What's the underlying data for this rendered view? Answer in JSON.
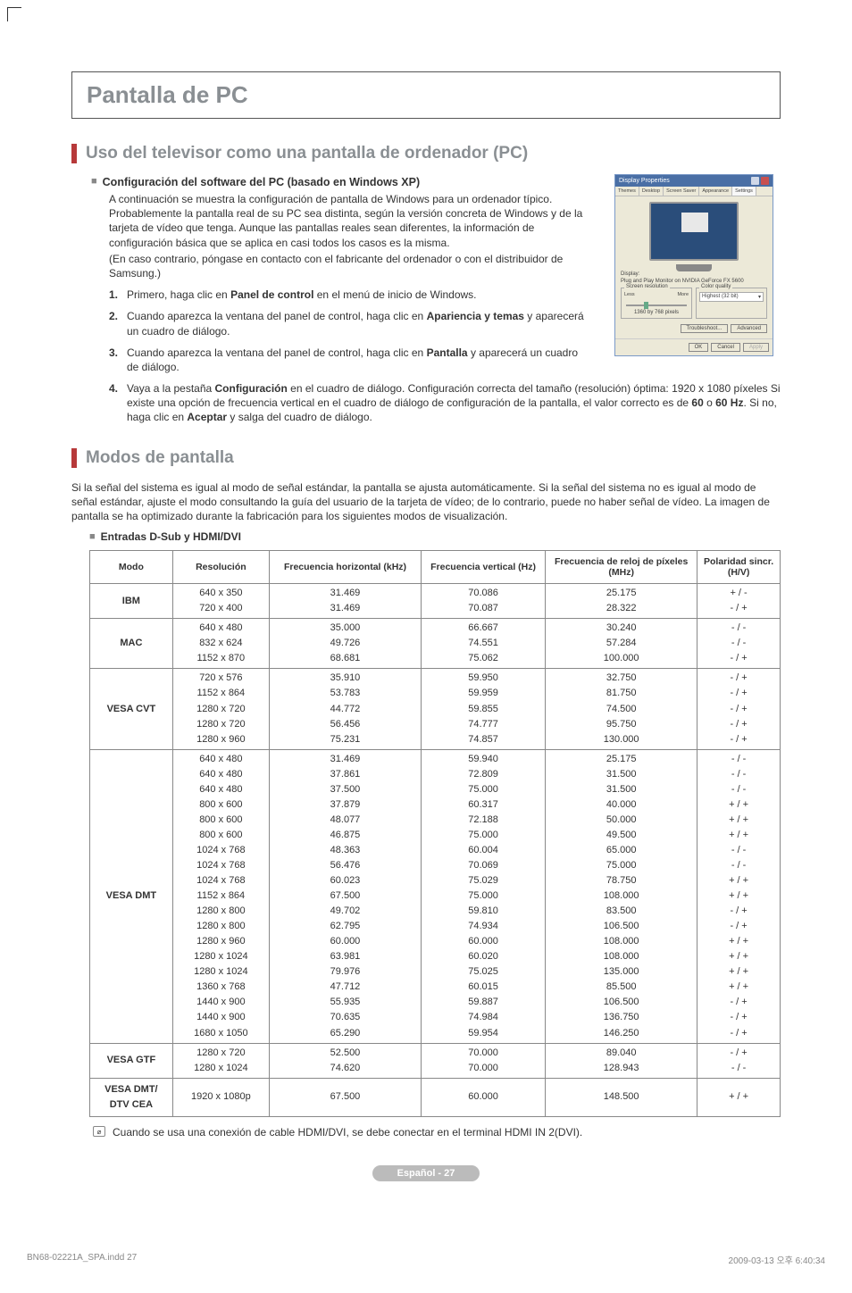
{
  "title": "Pantalla de PC",
  "section1": {
    "title": "Uso del televisor como una pantalla de ordenador (PC)",
    "subhead": "Configuración del software del PC (basado en Windows XP)",
    "intro1": "A continuación se muestra la configuración de pantalla de Windows para un ordenador típico. Probablemente la pantalla real de su PC sea distinta, según la versión concreta de Windows y de la tarjeta de vídeo que tenga. Aunque las pantallas reales sean diferentes, la información de configuración básica que se aplica en casi todos los casos es la misma.",
    "intro2": "(En caso contrario, póngase en contacto con el fabricante del ordenador o con el distribuidor de Samsung.)",
    "steps": [
      {
        "n": "1.",
        "pre": "Primero, haga clic en ",
        "b": "Panel de control",
        "post": " en el menú de inicio de Windows."
      },
      {
        "n": "2.",
        "pre": "Cuando aparezca la ventana del panel de control, haga clic en ",
        "b": "Apariencia y temas",
        "post": "  y aparecerá un cuadro de diálogo."
      },
      {
        "n": "3.",
        "pre": "Cuando aparezca la ventana del panel de control, haga clic en ",
        "b": "Pantalla",
        "post": " y aparecerá un cuadro de diálogo."
      },
      {
        "n": "4.",
        "pre": "Vaya a la pestaña ",
        "b": "Configuración",
        "post": " en el cuadro de diálogo. Configuración correcta del tamaño (resolución) óptima: 1920 x 1080 píxeles Si existe una opción de frecuencia vertical en el cuadro de diálogo de configuración de la pantalla, el valor correcto es de ",
        "b2": "60",
        "mid": " o ",
        "b3": "60 Hz",
        "post2": ". Si no, haga clic en ",
        "b4": "Aceptar",
        "post3": " y salga del cuadro de diálogo."
      }
    ]
  },
  "display_dialog": {
    "title": "Display Properties",
    "tabs": [
      "Themes",
      "Desktop",
      "Screen Saver",
      "Appearance",
      "Settings"
    ],
    "display_label": "Display:",
    "display_name": "Plug and Play Monitor on NVIDIA GeForce FX 5600",
    "screen_res": "Screen resolution",
    "less": "Less",
    "more": "More",
    "res_val": "1360 by 768 pixels",
    "colq": "Color quality",
    "colq_val": "Highest (32 bit)",
    "trouble": "Troubleshoot...",
    "adv": "Advanced",
    "ok": "OK",
    "cancel": "Cancel",
    "apply": "Apply"
  },
  "section2": {
    "title": "Modos de pantalla",
    "intro": "Si la señal del sistema es igual al modo de señal estándar, la pantalla se ajusta automáticamente. Si la señal del sistema no es igual al modo de señal estándar, ajuste el modo consultando la guía del usuario de la tarjeta de vídeo; de lo contrario, puede no haber señal de vídeo. La imagen de pantalla se ha optimizado durante la fabricación para los siguientes modos de visualización.",
    "entradas": "Entradas D-Sub y HDMI/DVI"
  },
  "table": {
    "headers": [
      "Modo",
      "Resolución",
      "Frecuencia horizontal (kHz)",
      "Frecuencia vertical (Hz)",
      "Frecuencia de reloj de píxeles (MHz)",
      "Polaridad sincr. (H/V)"
    ],
    "col_pct": [
      12,
      14,
      22,
      18,
      22,
      12
    ],
    "rows": [
      {
        "mode": "IBM",
        "res": "640 x 350\n720 x 400",
        "fh": "31.469\n31.469",
        "fv": "70.086\n70.087",
        "clk": "25.175\n28.322",
        "pol": "+ / -\n- / +"
      },
      {
        "mode": "MAC",
        "res": "640 x 480\n832 x 624\n1152 x 870",
        "fh": "35.000\n49.726\n68.681",
        "fv": "66.667\n74.551\n75.062",
        "clk": "30.240\n57.284\n100.000",
        "pol": "- / -\n- / -\n- / +"
      },
      {
        "mode": "VESA CVT",
        "res": "720 x 576\n1152 x 864\n1280 x 720\n1280 x 720\n1280 x 960",
        "fh": "35.910\n53.783\n44.772\n56.456\n75.231",
        "fv": "59.950\n59.959\n59.855\n74.777\n74.857",
        "clk": "32.750\n81.750\n74.500\n95.750\n130.000",
        "pol": "- / +\n- / +\n- / +\n- / +\n- / +"
      },
      {
        "mode": "VESA DMT",
        "res": "640 x 480\n640 x 480\n640 x 480\n800 x 600\n800 x 600\n800 x 600\n1024 x 768\n1024 x 768\n1024 x 768\n1152 x 864\n1280 x 800\n1280 x 800\n1280 x 960\n1280 x 1024\n1280 x 1024\n1360 x 768\n1440 x 900\n1440 x 900\n1680 x 1050",
        "fh": "31.469\n37.861\n37.500\n37.879\n48.077\n46.875\n48.363\n56.476\n60.023\n67.500\n49.702\n62.795\n60.000\n63.981\n79.976\n47.712\n55.935\n70.635\n65.290",
        "fv": "59.940\n72.809\n75.000\n60.317\n72.188\n75.000\n60.004\n70.069\n75.029\n75.000\n59.810\n74.934\n60.000\n60.020\n75.025\n60.015\n59.887\n74.984\n59.954",
        "clk": "25.175\n31.500\n31.500\n40.000\n50.000\n49.500\n65.000\n75.000\n78.750\n108.000\n83.500\n106.500\n108.000\n108.000\n135.000\n85.500\n106.500\n136.750\n146.250",
        "pol": "- / -\n- / -\n- / -\n+ / +\n+ / +\n+ / +\n- / -\n- / -\n+ / +\n+ / +\n- / +\n- / +\n+ / +\n+ / +\n+ / +\n+ / +\n- / +\n- / +\n- / +"
      },
      {
        "mode": "VESA GTF",
        "res": "1280 x 720\n1280 x 1024",
        "fh": "52.500\n74.620",
        "fv": "70.000\n70.000",
        "clk": "89.040\n128.943",
        "pol": "- / +\n- / -"
      },
      {
        "mode": "VESA DMT/ DTV CEA",
        "res": "1920 x 1080p",
        "fh": "67.500",
        "fv": "60.000",
        "clk": "148.500",
        "pol": "+ / +"
      }
    ]
  },
  "note": "Cuando se usa una conexión de cable HDMI/DVI, se debe conectar en el terminal HDMI IN 2(DVI).",
  "footer_pill": "Español - 27",
  "print": {
    "left": "BN68-02221A_SPA.indd   27",
    "right": "2009-03-13   오후 6:40:34"
  }
}
